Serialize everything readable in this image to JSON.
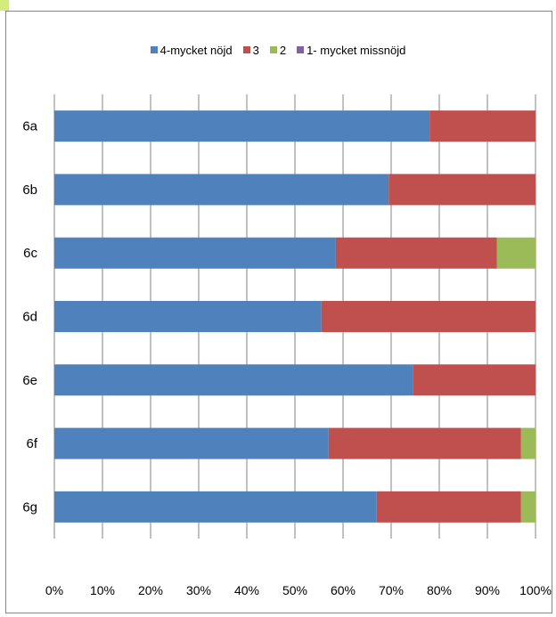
{
  "chart_data": {
    "type": "bar",
    "orientation": "horizontal",
    "stacked": true,
    "percent": true,
    "categories": [
      "6a",
      "6b",
      "6c",
      "6d",
      "6e",
      "6f",
      "6g"
    ],
    "series": [
      {
        "name": "4-mycket nöjd",
        "color": "#4f81bd",
        "values": [
          78,
          69.5,
          58.5,
          55.5,
          74.5,
          57,
          67
        ]
      },
      {
        "name": "3",
        "color": "#c0504d",
        "values": [
          22,
          30.5,
          33.5,
          44.5,
          25.5,
          40,
          30
        ]
      },
      {
        "name": "2",
        "color": "#9bbb59",
        "values": [
          0,
          0,
          8,
          0,
          0,
          3,
          3
        ]
      },
      {
        "name": "1- mycket missnöjd",
        "color": "#8064a2",
        "values": [
          0,
          0,
          0,
          0,
          0,
          0,
          0
        ]
      }
    ],
    "xlim": [
      0,
      100
    ],
    "xticks": [
      "0%",
      "10%",
      "20%",
      "30%",
      "40%",
      "50%",
      "60%",
      "70%",
      "80%",
      "90%",
      "100%"
    ],
    "legend_position": "top",
    "grid": true
  }
}
